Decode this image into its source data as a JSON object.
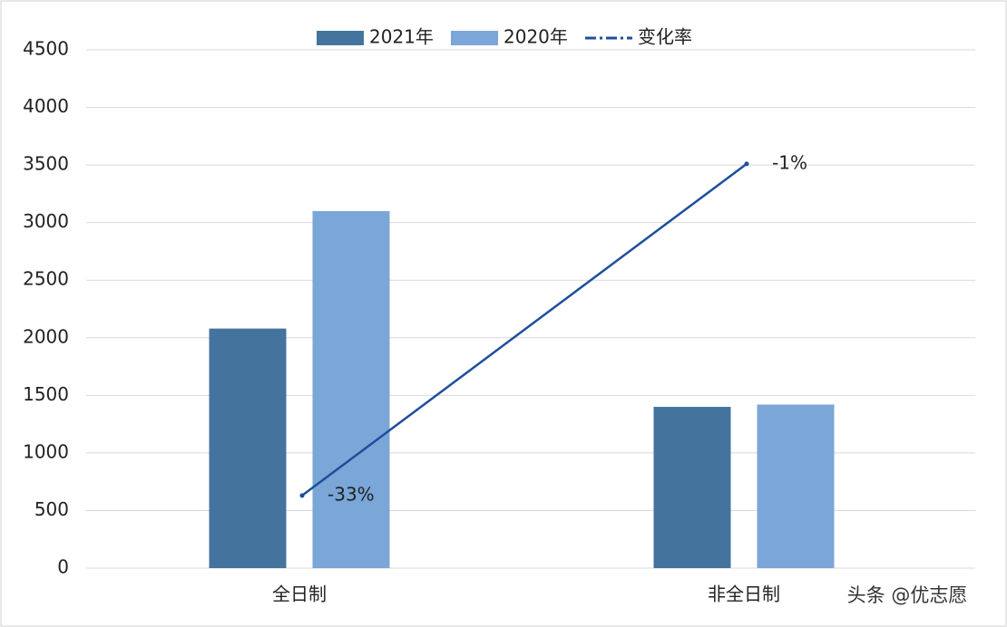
{
  "chart_data": {
    "type": "bar",
    "categories": [
      "全日制",
      "非全日制"
    ],
    "series": [
      {
        "name": "2021年",
        "type": "bar",
        "color": "#44739e",
        "values": [
          2080,
          1400
        ]
      },
      {
        "name": "2020年",
        "type": "bar",
        "color": "#7aa6d8",
        "values": [
          3100,
          1420
        ]
      },
      {
        "name": "变化率",
        "type": "line",
        "axis": "y2",
        "color": "#1f4e9c",
        "values": [
          -33,
          -1
        ],
        "value_labels": [
          "-33%",
          "-1%"
        ]
      }
    ],
    "ylim": [
      0,
      4500
    ],
    "yticks": [
      0,
      500,
      1000,
      1500,
      2000,
      2500,
      3000,
      3500,
      4000,
      4500
    ],
    "y2lim": [
      -40,
      10
    ],
    "grid": true,
    "legend": "top",
    "watermark": "头条 @优志愿"
  }
}
